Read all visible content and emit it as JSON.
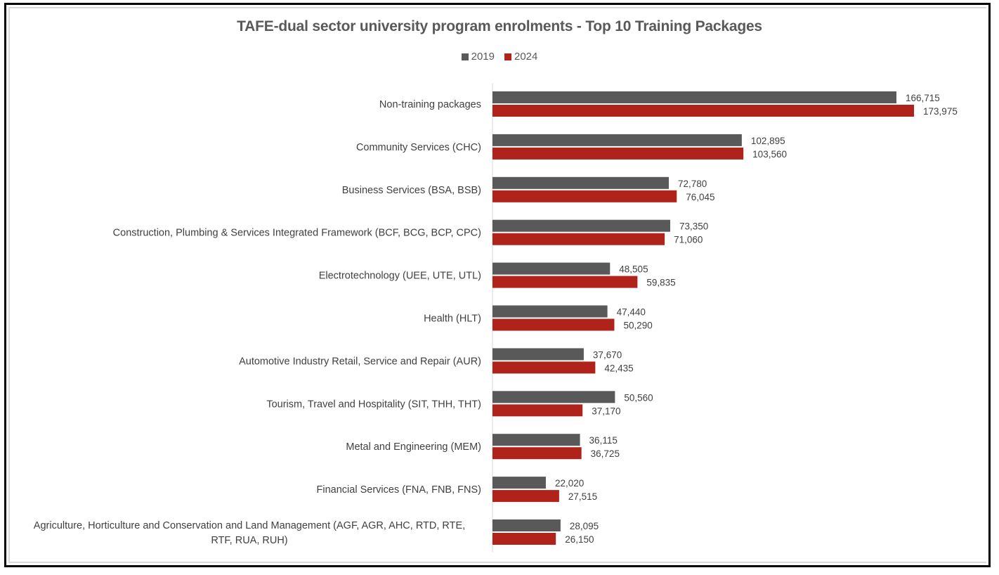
{
  "chart_data": {
    "type": "bar",
    "orientation": "horizontal",
    "title": "TAFE-dual sector university program enrolments - Top 10 Training Packages",
    "xlabel": "",
    "ylabel": "",
    "legend_position": "top",
    "grid": false,
    "xlim": [
      0,
      180000
    ],
    "categories": [
      [
        "Non-training packages"
      ],
      [
        "Community Services (CHC)"
      ],
      [
        "Business Services (BSA, BSB)"
      ],
      [
        "Construction, Plumbing & Services Integrated Framework (BCF, BCG, BCP, CPC)"
      ],
      [
        "Electrotechnology (UEE, UTE, UTL)"
      ],
      [
        "Health (HLT)"
      ],
      [
        "Automotive Industry Retail, Service and Repair (AUR)"
      ],
      [
        "Tourism, Travel and Hospitality (SIT, THH, THT)"
      ],
      [
        "Metal and Engineering (MEM)"
      ],
      [
        "Financial Services (FNA, FNB, FNS)"
      ],
      [
        "Agriculture, Horticulture and Conservation and Land Management (AGF, AGR, AHC, RTD, RTE,",
        "RTF, RUA, RUH)"
      ]
    ],
    "series": [
      {
        "name": "2019",
        "color": "#595959",
        "values": [
          166715,
          102895,
          72780,
          73350,
          48505,
          47440,
          37670,
          50560,
          36115,
          22020,
          28095
        ],
        "labels": [
          "166,715",
          "102,895",
          "72,780",
          "73,350",
          "48,505",
          "47,440",
          "37,670",
          "50,560",
          "36,115",
          "22,020",
          "28,095"
        ]
      },
      {
        "name": "2024",
        "color": "#b0231a",
        "values": [
          173975,
          103560,
          76045,
          71060,
          59835,
          50290,
          42435,
          37170,
          36725,
          27515,
          26150
        ],
        "labels": [
          "173,975",
          "103,560",
          "76,045",
          "71,060",
          "59,835",
          "50,290",
          "42,435",
          "37,170",
          "36,725",
          "27,515",
          "26,150"
        ]
      }
    ]
  }
}
